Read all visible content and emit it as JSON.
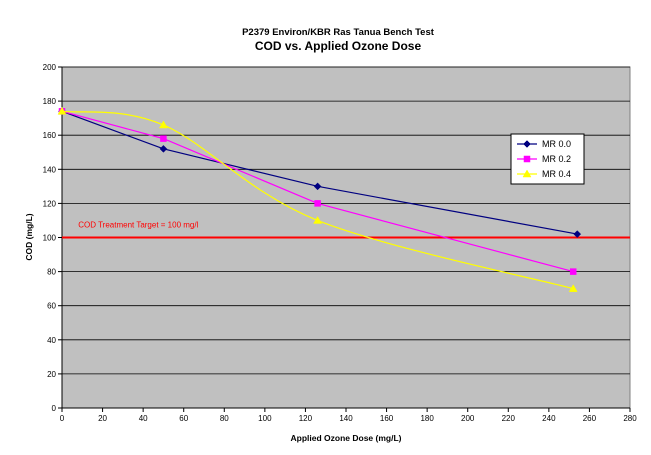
{
  "chart_data": {
    "type": "line",
    "title_line1": "P2379 Environ/KBR Ras Tanua Bench Test",
    "title": "COD vs. Applied Ozone Dose",
    "xlabel": "Applied Ozone Dose (mg/L)",
    "ylabel": "COD (mg/L)",
    "xlim": [
      0,
      280
    ],
    "ylim": [
      0,
      200
    ],
    "x_ticks": [
      0,
      20,
      40,
      60,
      80,
      100,
      120,
      140,
      160,
      180,
      200,
      220,
      240,
      260,
      280
    ],
    "y_ticks": [
      0,
      20,
      40,
      60,
      80,
      100,
      120,
      140,
      160,
      180,
      200
    ],
    "grid": "horizontal",
    "plot_background": "#c0c0c0",
    "legend_position": "right",
    "series": [
      {
        "name": "MR 0.0",
        "color": "#000080",
        "marker": "diamond",
        "smooth": false,
        "points": [
          [
            0,
            174
          ],
          [
            50,
            152
          ],
          [
            126,
            130
          ],
          [
            254,
            102
          ]
        ]
      },
      {
        "name": "MR 0.2",
        "color": "#ff00ff",
        "marker": "square",
        "smooth": false,
        "points": [
          [
            0,
            174
          ],
          [
            50,
            158
          ],
          [
            126,
            120
          ],
          [
            252,
            80
          ]
        ]
      },
      {
        "name": "MR 0.4",
        "color": "#ffff00",
        "marker": "triangle",
        "smooth": true,
        "points": [
          [
            0,
            174
          ],
          [
            50,
            166
          ],
          [
            126,
            110
          ],
          [
            252,
            70
          ]
        ]
      }
    ],
    "target_line": {
      "y": 100,
      "color": "#ff0000",
      "label": "COD Treatment Target = 100 mg/l",
      "label_x": 8,
      "label_y": 106
    }
  }
}
